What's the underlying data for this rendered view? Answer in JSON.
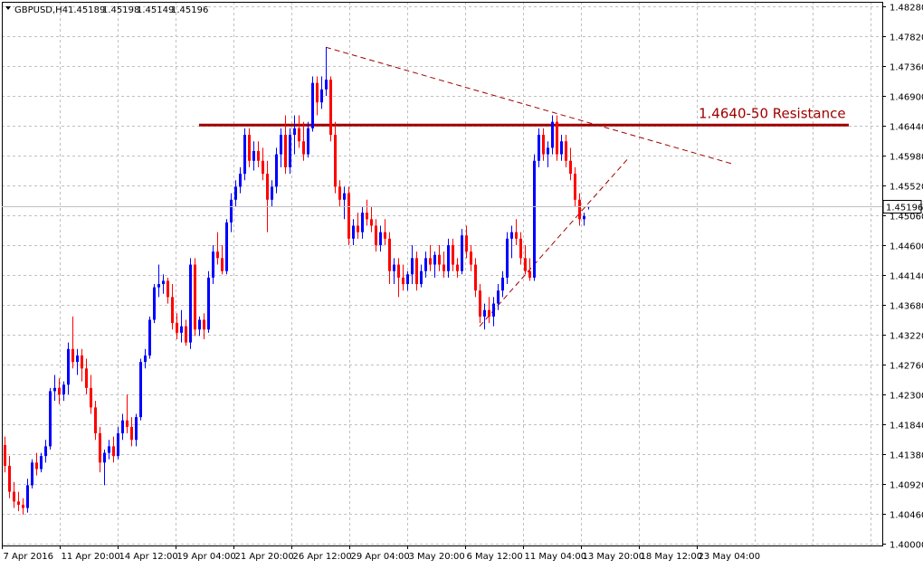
{
  "header": {
    "symbol": "GBPUSD,H4",
    "open": "1.45189",
    "high": "1.45198",
    "low": "1.45149",
    "close": "1.45196"
  },
  "colors": {
    "up": "#0000ff",
    "down": "#ff0000",
    "grid": "#c0c0c0",
    "border": "#000000",
    "resistance": "#a00000",
    "trendline": "#a00000",
    "price_badge_bg": "#ffffff"
  },
  "chart_data": {
    "type": "candlestick",
    "title": "",
    "ylim": [
      1.4,
      1.4828
    ],
    "y_ticks": [
      "1.48280",
      "1.47820",
      "1.47360",
      "1.46900",
      "1.46440",
      "1.45980",
      "1.45520",
      "1.45060",
      "1.44600",
      "1.44140",
      "1.43680",
      "1.43220",
      "1.42760",
      "1.42300",
      "1.41840",
      "1.41380",
      "1.40920",
      "1.40460",
      "1.40000"
    ],
    "x_labels": [
      "7 Apr 2016",
      "11 Apr 20:00",
      "14 Apr 12:00",
      "19 Apr 04:00",
      "21 Apr 20:00",
      "26 Apr 12:00",
      "29 Apr 04:00",
      "3 May 20:00",
      "6 May 12:00",
      "11 May 04:00",
      "13 May 20:00",
      "18 May 12:00",
      "23 May 04:00"
    ],
    "current_price": "1.45196",
    "candles": [
      [
        1.4152,
        1.4165,
        1.411,
        1.412
      ],
      [
        1.412,
        1.4135,
        1.407,
        1.408
      ],
      [
        1.408,
        1.4095,
        1.4055,
        1.4065
      ],
      [
        1.4065,
        1.408,
        1.405,
        1.406
      ],
      [
        1.406,
        1.407,
        1.4045,
        1.4055
      ],
      [
        1.4055,
        1.41,
        1.4048,
        1.409
      ],
      [
        1.409,
        1.413,
        1.4085,
        1.4125
      ],
      [
        1.4125,
        1.414,
        1.4105,
        1.4115
      ],
      [
        1.4115,
        1.414,
        1.411,
        1.4135
      ],
      [
        1.4135,
        1.416,
        1.4125,
        1.415
      ],
      [
        1.415,
        1.424,
        1.4145,
        1.4235
      ],
      [
        1.4235,
        1.426,
        1.422,
        1.424
      ],
      [
        1.424,
        1.4255,
        1.4215,
        1.423
      ],
      [
        1.423,
        1.425,
        1.422,
        1.4245
      ],
      [
        1.4245,
        1.431,
        1.423,
        1.43
      ],
      [
        1.43,
        1.435,
        1.427,
        1.428
      ],
      [
        1.428,
        1.43,
        1.426,
        1.429
      ],
      [
        1.429,
        1.43,
        1.425,
        1.427
      ],
      [
        1.427,
        1.4285,
        1.423,
        1.424
      ],
      [
        1.424,
        1.426,
        1.42,
        1.421
      ],
      [
        1.421,
        1.422,
        1.416,
        1.417
      ],
      [
        1.417,
        1.418,
        1.411,
        1.4125
      ],
      [
        1.4125,
        1.4145,
        1.409,
        1.414
      ],
      [
        1.414,
        1.416,
        1.413,
        1.415
      ],
      [
        1.415,
        1.4165,
        1.4125,
        1.4135
      ],
      [
        1.4135,
        1.418,
        1.413,
        1.417
      ],
      [
        1.417,
        1.42,
        1.416,
        1.419
      ],
      [
        1.419,
        1.423,
        1.417,
        1.418
      ],
      [
        1.418,
        1.4195,
        1.415,
        1.416
      ],
      [
        1.416,
        1.42,
        1.415,
        1.4195
      ],
      [
        1.4195,
        1.4285,
        1.419,
        1.428
      ],
      [
        1.428,
        1.43,
        1.427,
        1.429
      ],
      [
        1.429,
        1.435,
        1.4285,
        1.4345
      ],
      [
        1.4345,
        1.44,
        1.434,
        1.4395
      ],
      [
        1.4395,
        1.443,
        1.438,
        1.44
      ],
      [
        1.44,
        1.4415,
        1.4385,
        1.4405
      ],
      [
        1.4405,
        1.441,
        1.437,
        1.438
      ],
      [
        1.438,
        1.44,
        1.433,
        1.434
      ],
      [
        1.434,
        1.4355,
        1.4315,
        1.4325
      ],
      [
        1.4325,
        1.436,
        1.431,
        1.4335
      ],
      [
        1.4335,
        1.4345,
        1.4305,
        1.431
      ],
      [
        1.431,
        1.444,
        1.43,
        1.443
      ],
      [
        1.443,
        1.444,
        1.432,
        1.433
      ],
      [
        1.433,
        1.435,
        1.432,
        1.4345
      ],
      [
        1.4345,
        1.4355,
        1.4315,
        1.433
      ],
      [
        1.433,
        1.442,
        1.4325,
        1.441
      ],
      [
        1.441,
        1.446,
        1.44,
        1.445
      ],
      [
        1.445,
        1.448,
        1.443,
        1.444
      ],
      [
        1.444,
        1.446,
        1.4415,
        1.442
      ],
      [
        1.442,
        1.45,
        1.4415,
        1.4495
      ],
      [
        1.4495,
        1.454,
        1.448,
        1.453
      ],
      [
        1.453,
        1.456,
        1.452,
        1.455
      ],
      [
        1.455,
        1.458,
        1.454,
        1.457
      ],
      [
        1.457,
        1.464,
        1.456,
        1.463
      ],
      [
        1.463,
        1.464,
        1.458,
        1.459
      ],
      [
        1.459,
        1.462,
        1.4575,
        1.4605
      ],
      [
        1.4605,
        1.462,
        1.458,
        1.459
      ],
      [
        1.459,
        1.461,
        1.456,
        1.457
      ],
      [
        1.457,
        1.459,
        1.448,
        1.453
      ],
      [
        1.453,
        1.456,
        1.452,
        1.455
      ],
      [
        1.455,
        1.461,
        1.454,
        1.46
      ],
      [
        1.46,
        1.464,
        1.458,
        1.463
      ],
      [
        1.463,
        1.466,
        1.457,
        1.458
      ],
      [
        1.458,
        1.464,
        1.457,
        1.463
      ],
      [
        1.463,
        1.466,
        1.46,
        1.464
      ],
      [
        1.464,
        1.466,
        1.461,
        1.462
      ],
      [
        1.462,
        1.465,
        1.459,
        1.46
      ],
      [
        1.46,
        1.465,
        1.4595,
        1.464
      ],
      [
        1.464,
        1.472,
        1.4635,
        1.471
      ],
      [
        1.471,
        1.472,
        1.466,
        1.468
      ],
      [
        1.468,
        1.472,
        1.467,
        1.47
      ],
      [
        1.47,
        1.4765,
        1.469,
        1.4715
      ],
      [
        1.4715,
        1.472,
        1.462,
        1.463
      ],
      [
        1.463,
        1.465,
        1.454,
        1.455
      ],
      [
        1.455,
        1.456,
        1.452,
        1.453
      ],
      [
        1.453,
        1.455,
        1.45,
        1.454
      ],
      [
        1.454,
        1.455,
        1.446,
        1.447
      ],
      [
        1.447,
        1.45,
        1.446,
        1.449
      ],
      [
        1.449,
        1.451,
        1.447,
        1.448
      ],
      [
        1.448,
        1.452,
        1.447,
        1.451
      ],
      [
        1.451,
        1.453,
        1.449,
        1.45
      ],
      [
        1.45,
        1.452,
        1.448,
        1.449
      ],
      [
        1.449,
        1.45,
        1.445,
        1.446
      ],
      [
        1.446,
        1.449,
        1.445,
        1.448
      ],
      [
        1.448,
        1.45,
        1.446,
        1.447
      ],
      [
        1.447,
        1.448,
        1.44,
        1.442
      ],
      [
        1.442,
        1.444,
        1.44,
        1.443
      ],
      [
        1.443,
        1.444,
        1.438,
        1.441
      ],
      [
        1.441,
        1.443,
        1.439,
        1.44
      ],
      [
        1.44,
        1.442,
        1.439,
        1.4415
      ],
      [
        1.4415,
        1.446,
        1.44,
        1.444
      ],
      [
        1.444,
        1.445,
        1.439,
        1.44
      ],
      [
        1.44,
        1.443,
        1.4395,
        1.442
      ],
      [
        1.442,
        1.445,
        1.441,
        1.444
      ],
      [
        1.444,
        1.446,
        1.442,
        1.443
      ],
      [
        1.443,
        1.445,
        1.441,
        1.4445
      ],
      [
        1.4445,
        1.446,
        1.442,
        1.443
      ],
      [
        1.443,
        1.445,
        1.441,
        1.442
      ],
      [
        1.442,
        1.447,
        1.441,
        1.446
      ],
      [
        1.446,
        1.447,
        1.442,
        1.443
      ],
      [
        1.443,
        1.444,
        1.441,
        1.442
      ],
      [
        1.442,
        1.4485,
        1.4415,
        1.4475
      ],
      [
        1.4475,
        1.449,
        1.444,
        1.445
      ],
      [
        1.445,
        1.446,
        1.442,
        1.443
      ],
      [
        1.443,
        1.444,
        1.438,
        1.439
      ],
      [
        1.439,
        1.44,
        1.434,
        1.435
      ],
      [
        1.435,
        1.437,
        1.433,
        1.436
      ],
      [
        1.436,
        1.438,
        1.434,
        1.435
      ],
      [
        1.435,
        1.438,
        1.4335,
        1.437
      ],
      [
        1.437,
        1.44,
        1.436,
        1.439
      ],
      [
        1.439,
        1.442,
        1.438,
        1.441
      ],
      [
        1.441,
        1.448,
        1.44,
        1.447
      ],
      [
        1.447,
        1.449,
        1.444,
        1.448
      ],
      [
        1.448,
        1.45,
        1.446,
        1.447
      ],
      [
        1.447,
        1.448,
        1.443,
        1.444
      ],
      [
        1.444,
        1.446,
        1.4415,
        1.442
      ],
      [
        1.442,
        1.444,
        1.4405,
        1.441
      ],
      [
        1.441,
        1.46,
        1.4405,
        1.459
      ],
      [
        1.459,
        1.464,
        1.458,
        1.463
      ],
      [
        1.463,
        1.464,
        1.459,
        1.46
      ],
      [
        1.46,
        1.462,
        1.458,
        1.461
      ],
      [
        1.461,
        1.466,
        1.46,
        1.465
      ],
      [
        1.465,
        1.466,
        1.459,
        1.46
      ],
      [
        1.46,
        1.463,
        1.459,
        1.462
      ],
      [
        1.462,
        1.463,
        1.458,
        1.459
      ],
      [
        1.459,
        1.461,
        1.456,
        1.457
      ],
      [
        1.457,
        1.458,
        1.452,
        1.453
      ],
      [
        1.453,
        1.454,
        1.449,
        1.45
      ],
      [
        1.45,
        1.451,
        1.449,
        1.4505
      ],
      [
        1.45189,
        1.45198,
        1.45149,
        1.45196
      ]
    ],
    "resistance": {
      "price": 1.4645,
      "label": "1.4640-50 Resistance"
    },
    "trendlines": [
      {
        "style": "dashed",
        "from": {
          "candle": 71,
          "price": 1.4765
        },
        "to": {
          "candle": 161,
          "price": 1.4585
        }
      },
      {
        "style": "dashed",
        "from": {
          "candle": 105,
          "price": 1.4335
        },
        "to": {
          "candle": 138,
          "price": 1.4595
        }
      }
    ]
  }
}
